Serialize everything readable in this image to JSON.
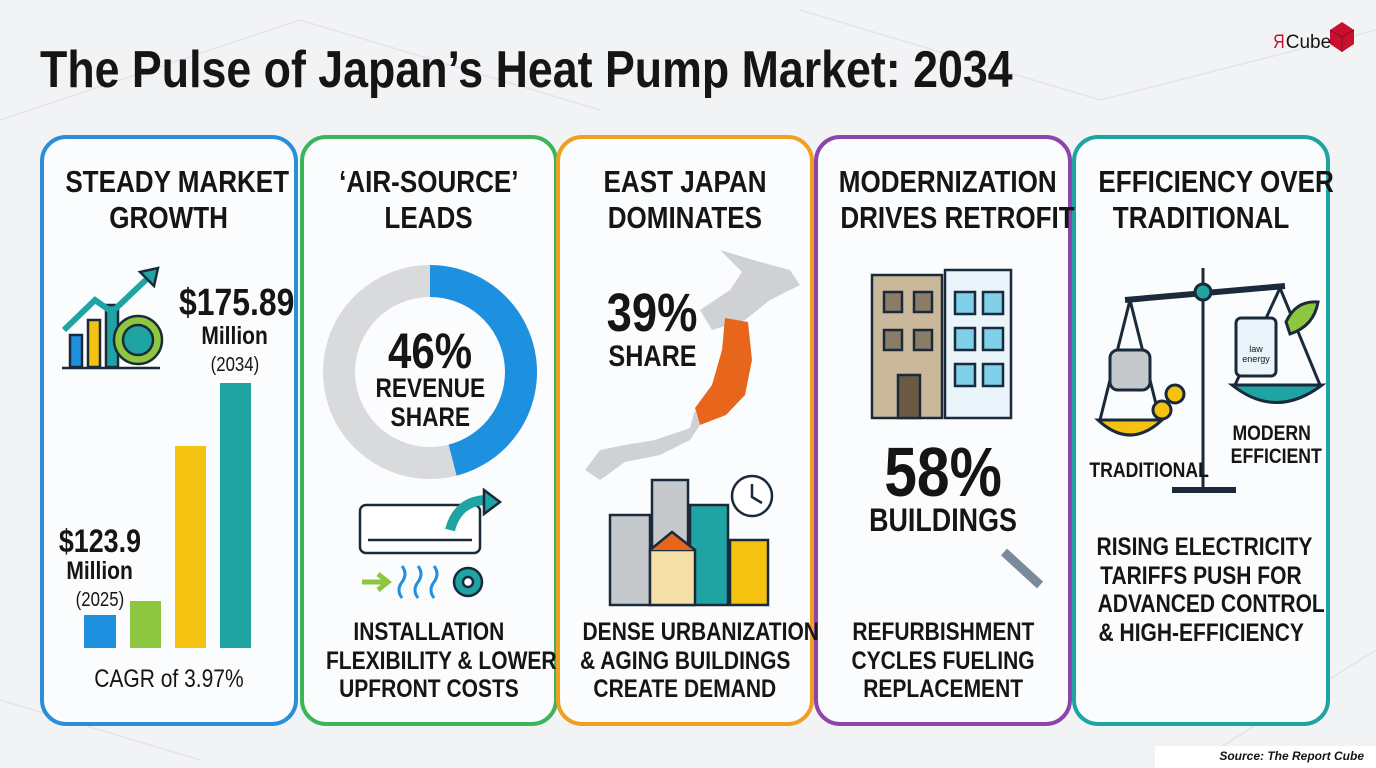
{
  "title": "The Pulse of Japan’s Heat Pump Market: 2034",
  "logo": {
    "mark": "Я",
    "text": "Cube"
  },
  "source": "Source: The Report Cube",
  "panels": [
    {
      "heading": [
        "STEADY MARKET",
        "GROWTH"
      ],
      "end_value": "$175.89",
      "end_unit": "Million",
      "end_year": "(2034)",
      "start_value": "$123.9",
      "start_unit": "Million",
      "start_year": "(2025)",
      "caption": [
        "CAGR of 3.97%"
      ]
    },
    {
      "heading": [
        "‘AIR-SOURCE’",
        "LEADS"
      ],
      "value": 46,
      "value_label": "46%",
      "label": [
        "REVENUE",
        "SHARE"
      ],
      "caption": [
        "INSTALLATION",
        "FLEXIBILITY & LOWER",
        "UPFRONT COSTS"
      ]
    },
    {
      "heading": [
        "EAST JAPAN",
        "DOMINATES"
      ],
      "stat": "39%",
      "label": "SHARE",
      "caption": [
        "DENSE URBANIZATION",
        "& AGING BUILDINGS",
        "CREATE DEMAND"
      ]
    },
    {
      "heading": [
        "MODERNIZATION",
        "DRIVES RETROFIT"
      ],
      "stat": "58%",
      "label": "BUILDINGS",
      "caption": [
        "REFURBISHMENT",
        "CYCLES FUELING",
        "REPLACEMENT"
      ]
    },
    {
      "heading": [
        "EFFICIENCY OVER",
        "TRADITIONAL"
      ],
      "left_label": "TRADITIONAL",
      "right_label": [
        "MODERN",
        "EFFICIENT"
      ],
      "device_text": [
        "law",
        "energy"
      ],
      "caption": [
        "RISING ELECTRICITY",
        "TARIFFS PUSH FOR",
        "ADVANCED CONTROL",
        "& HIGH-EFFICIENCY"
      ]
    }
  ]
}
